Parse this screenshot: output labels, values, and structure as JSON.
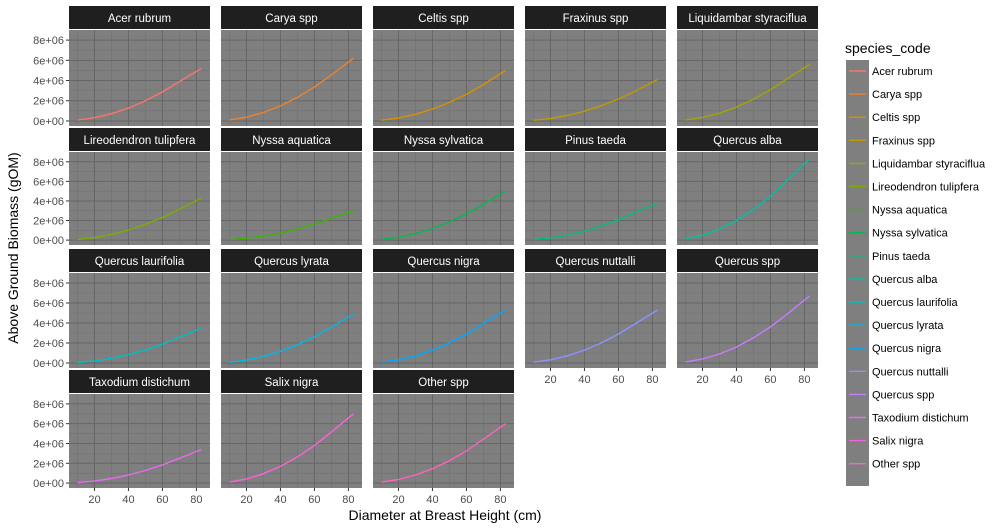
{
  "chart_data": {
    "type": "line",
    "facet_by": "species_code",
    "xlabel": "Diameter at Breast Height (cm)",
    "ylabel": "Above Ground Biomass (gOM)",
    "xlim": [
      5,
      88
    ],
    "ylim": [
      -500000,
      9000000
    ],
    "x_ticks": [
      20,
      40,
      60,
      80
    ],
    "x_tick_labels": [
      "20",
      "40",
      "60",
      "80"
    ],
    "y_ticks": [
      0,
      2000000,
      4000000,
      6000000,
      8000000
    ],
    "y_tick_labels": [
      "0e+00",
      "2e+06",
      "4e+06",
      "6e+06",
      "8e+06"
    ],
    "grid": true,
    "legend": {
      "title": "species_code",
      "position": "right"
    },
    "curve_x": [
      10,
      20,
      30,
      40,
      50,
      60,
      70,
      83
    ],
    "series": [
      {
        "name": "Acer rubrum",
        "color": "#F8766D",
        "values": [
          80000,
          320000,
          720000,
          1270000,
          1990000,
          2860000,
          3890000,
          5200000
        ]
      },
      {
        "name": "Carya spp",
        "color": "#EA8331",
        "values": [
          90000,
          370000,
          840000,
          1490000,
          2330000,
          3350000,
          4560000,
          6200000
        ]
      },
      {
        "name": "Celtis spp",
        "color": "#D89000",
        "values": [
          70000,
          290000,
          660000,
          1180000,
          1840000,
          2650000,
          3600000,
          5000000
        ]
      },
      {
        "name": "Fraxinus spp",
        "color": "#C09B00",
        "values": [
          60000,
          240000,
          540000,
          960000,
          1510000,
          2170000,
          2950000,
          4100000
        ]
      },
      {
        "name": "Liquidambar styraciflua",
        "color": "#A3A500",
        "values": [
          80000,
          340000,
          770000,
          1370000,
          2140000,
          3080000,
          4190000,
          5600000
        ]
      },
      {
        "name": "Lireodendron tulipfera",
        "color": "#7CAE00",
        "values": [
          60000,
          260000,
          580000,
          1030000,
          1610000,
          2310000,
          3150000,
          4300000
        ]
      },
      {
        "name": "Nyssa aquatica",
        "color": "#39B600",
        "values": [
          50000,
          180000,
          410000,
          730000,
          1140000,
          1640000,
          2230000,
          3000000
        ]
      },
      {
        "name": "Nyssa sylvatica",
        "color": "#00BB4E",
        "values": [
          70000,
          300000,
          670000,
          1190000,
          1860000,
          2680000,
          3650000,
          5000000
        ]
      },
      {
        "name": "Pinus taeda",
        "color": "#00BF7D",
        "values": [
          60000,
          230000,
          520000,
          920000,
          1440000,
          2070000,
          2820000,
          3800000
        ]
      },
      {
        "name": "Quercus alba",
        "color": "#00C1A3",
        "values": [
          120000,
          500000,
          1130000,
          2000000,
          3130000,
          4500000,
          6130000,
          8300000
        ]
      },
      {
        "name": "Quercus laurifolia",
        "color": "#00BFC4",
        "values": [
          50000,
          210000,
          470000,
          840000,
          1310000,
          1880000,
          2560000,
          3500000
        ]
      },
      {
        "name": "Quercus lyrata",
        "color": "#00B8E7",
        "values": [
          70000,
          290000,
          660000,
          1170000,
          1830000,
          2630000,
          3580000,
          4900000
        ]
      },
      {
        "name": "Quercus nigra",
        "color": "#00A9FF",
        "values": [
          80000,
          320000,
          720000,
          1290000,
          2010000,
          2890000,
          3940000,
          5300000
        ]
      },
      {
        "name": "Quercus nuttalli",
        "color": "#8B93FF",
        "values": [
          80000,
          320000,
          720000,
          1290000,
          2010000,
          2890000,
          3940000,
          5300000
        ]
      },
      {
        "name": "Quercus spp",
        "color": "#C77CFF",
        "values": [
          100000,
          400000,
          900000,
          1600000,
          2510000,
          3610000,
          4910000,
          6700000
        ]
      },
      {
        "name": "Taxodium distichum",
        "color": "#E76BF3",
        "values": [
          50000,
          200000,
          460000,
          810000,
          1270000,
          1830000,
          2490000,
          3400000
        ]
      },
      {
        "name": "Salix nigra",
        "color": "#FA62DB",
        "values": [
          100000,
          420000,
          950000,
          1690000,
          2640000,
          3800000,
          5170000,
          7000000
        ]
      },
      {
        "name": "Other spp",
        "color": "#FF62BC",
        "values": [
          90000,
          360000,
          810000,
          1450000,
          2260000,
          3260000,
          4430000,
          6000000
        ]
      }
    ]
  }
}
